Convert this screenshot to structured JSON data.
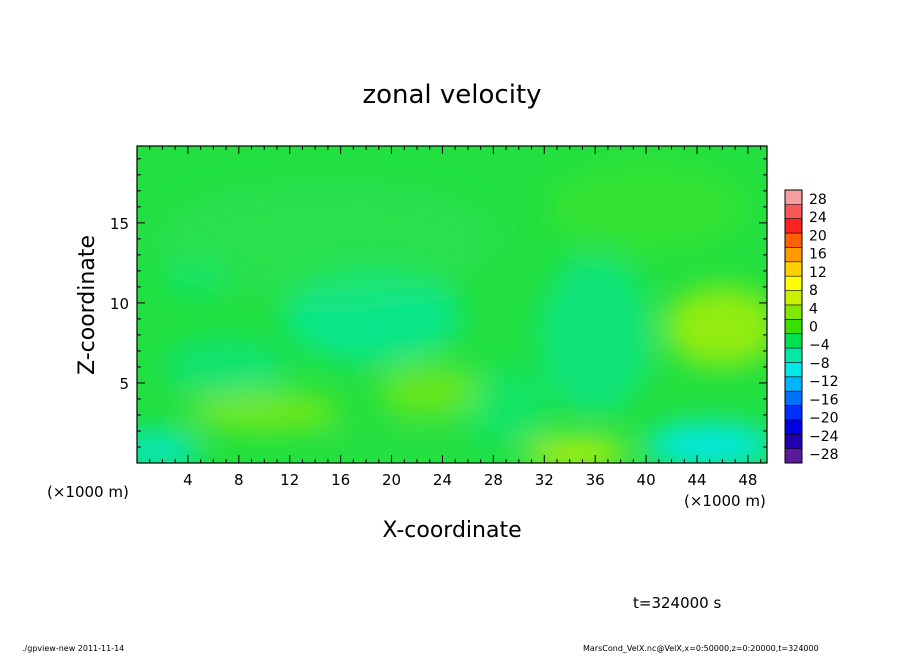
{
  "chart_data": {
    "type": "heatmap",
    "title": "zonal velocity",
    "xlabel": "X-coordinate",
    "ylabel": "Z-coordinate",
    "x_unit": "(×1000 m)",
    "x_unit_right": "(×1000 m)",
    "xlim": [
      0,
      49.5
    ],
    "ylim": [
      0,
      19.8
    ],
    "x_ticks": [
      4,
      8,
      12,
      16,
      20,
      24,
      28,
      32,
      36,
      40,
      44,
      48
    ],
    "y_ticks": [
      5,
      10,
      15
    ],
    "colorbar": {
      "labels": [
        "28",
        "24",
        "20",
        "16",
        "12",
        "8",
        "4",
        "0",
        "−4",
        "−8",
        "−12",
        "−16",
        "−20",
        "−24",
        "−28"
      ],
      "bands": [
        {
          "color": "#f4a0a0"
        },
        {
          "color": "#f85858"
        },
        {
          "color": "#ff2020"
        },
        {
          "color": "#ff6000"
        },
        {
          "color": "#ff9a00"
        },
        {
          "color": "#ffd000"
        },
        {
          "color": "#ffff00"
        },
        {
          "color": "#c8f000"
        },
        {
          "color": "#80e800"
        },
        {
          "color": "#38e000"
        },
        {
          "color": "#00e050"
        },
        {
          "color": "#00e8a8"
        },
        {
          "color": "#00e8e8"
        },
        {
          "color": "#00b4ff"
        },
        {
          "color": "#0070ff"
        },
        {
          "color": "#0030ff"
        },
        {
          "color": "#0000e0"
        },
        {
          "color": "#2000b0"
        },
        {
          "color": "#5a1a9a"
        }
      ]
    },
    "field_blobs": [
      {
        "x": 18.5,
        "z": 9.2,
        "rx": 7.0,
        "rz": 3.0,
        "color": "#00e8a8",
        "alpha": 0.7
      },
      {
        "x": 7.0,
        "z": 6.0,
        "rx": 5.0,
        "rz": 1.8,
        "color": "#00e8a0",
        "alpha": 0.5
      },
      {
        "x": 36.0,
        "z": 8.0,
        "rx": 4.5,
        "rz": 5.0,
        "color": "#00e8a8",
        "alpha": 0.55
      },
      {
        "x": 29.0,
        "z": 3.5,
        "rx": 3.5,
        "rz": 2.5,
        "color": "#00e890",
        "alpha": 0.45
      },
      {
        "x": 15.0,
        "z": 14.0,
        "rx": 14.0,
        "rz": 4.0,
        "color": "#30e060",
        "alpha": 0.4
      },
      {
        "x": 4.5,
        "z": 11.5,
        "rx": 2.5,
        "rz": 1.2,
        "color": "#00e890",
        "alpha": 0.45
      },
      {
        "x": 46.0,
        "z": 8.5,
        "rx": 4.5,
        "rz": 2.5,
        "color": "#b8f000",
        "alpha": 0.75
      },
      {
        "x": 10.0,
        "z": 3.2,
        "rx": 6.0,
        "rz": 1.2,
        "color": "#a8ee00",
        "alpha": 0.6
      },
      {
        "x": 23.0,
        "z": 4.5,
        "rx": 4.0,
        "rz": 1.6,
        "color": "#a0ee00",
        "alpha": 0.55
      },
      {
        "x": 34.5,
        "z": 0.6,
        "rx": 4.0,
        "rz": 0.9,
        "color": "#e0f400",
        "alpha": 0.8
      },
      {
        "x": 45.0,
        "z": 1.1,
        "rx": 5.0,
        "rz": 1.4,
        "color": "#00e8e8",
        "alpha": 0.95
      },
      {
        "x": 1.5,
        "z": 0.8,
        "rx": 3.5,
        "rz": 1.2,
        "color": "#00e8d0",
        "alpha": 0.85
      },
      {
        "x": 20.0,
        "z": 0.9,
        "rx": 6.0,
        "rz": 1.0,
        "color": "#28e040",
        "alpha": 0.5
      },
      {
        "x": 40.0,
        "z": 16.0,
        "rx": 8.0,
        "rz": 3.0,
        "color": "#48e420",
        "alpha": 0.45
      }
    ]
  },
  "annotations": {
    "time": "t=324000 s",
    "footer_left": "./gpview-new  2011-11-14",
    "footer_right": "MarsCond_VelX.nc@VelX,x=0:50000,z=0:20000,t=324000"
  }
}
